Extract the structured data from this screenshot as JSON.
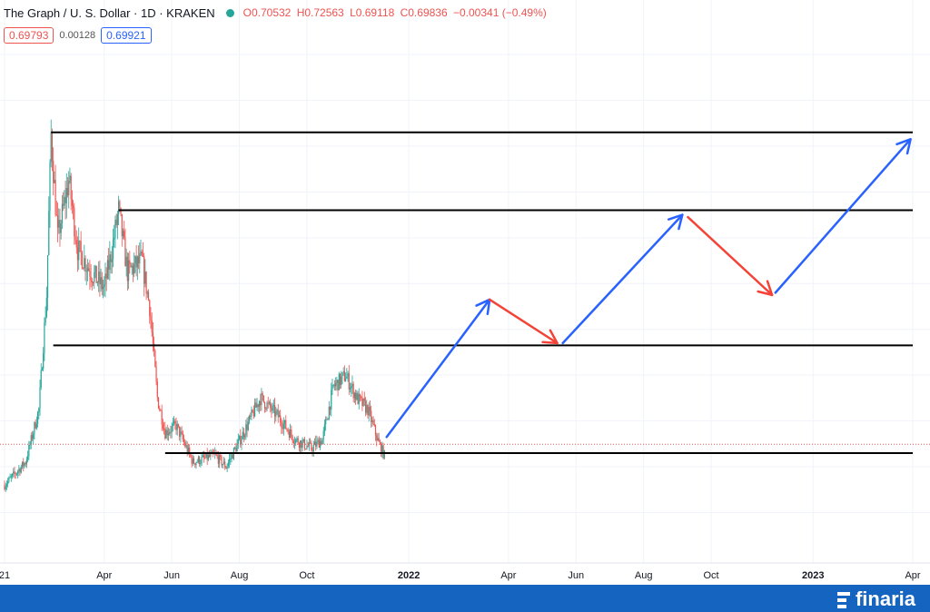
{
  "header": {
    "title": "The Graph / U. S. Dollar · 1D · KRAKEN",
    "open": "O0.70532",
    "high": "H0.72563",
    "low": "L0.69118",
    "close": "C0.69836",
    "change": "−0.00341 (−0.49%)",
    "bid": "0.69793",
    "spread": "0.00128",
    "ask": "0.69921"
  },
  "brand": {
    "name": "finaria"
  },
  "colors": {
    "up": "#26a69a",
    "down": "#ef5350",
    "level": "#000000",
    "arrow_up": "#2962ff",
    "arrow_down": "#f44336",
    "footer": "#1565c0"
  },
  "chart_data": {
    "type": "candlestick",
    "symbol": "The Graph / U. S. Dollar",
    "interval": "1D",
    "exchange": "KRAKEN",
    "x_ticks": [
      {
        "label": "21",
        "date": "2021-01-01"
      },
      {
        "label": "Apr",
        "date": "2021-04-01"
      },
      {
        "label": "Jun",
        "date": "2021-06-01"
      },
      {
        "label": "Aug",
        "date": "2021-08-01"
      },
      {
        "label": "Oct",
        "date": "2021-10-01"
      },
      {
        "label": "2022",
        "date": "2022-01-01"
      },
      {
        "label": "Apr",
        "date": "2022-04-01"
      },
      {
        "label": "Jun",
        "date": "2022-06-01"
      },
      {
        "label": "Aug",
        "date": "2022-08-01"
      },
      {
        "label": "Oct",
        "date": "2022-10-01"
      },
      {
        "label": "2023",
        "date": "2023-01-01"
      },
      {
        "label": "Apr",
        "date": "2023-04-01"
      }
    ],
    "x_bold_labels": [
      "2022",
      "2023"
    ],
    "y_range": [
      0.2,
      2.4
    ],
    "grid": true,
    "current_price": 0.69836,
    "price_path": [
      [
        "2021-01-01",
        0.52
      ],
      [
        "2021-01-20",
        0.62
      ],
      [
        "2021-02-01",
        0.85
      ],
      [
        "2021-02-08",
        1.35
      ],
      [
        "2021-02-12",
        2.05
      ],
      [
        "2021-02-18",
        1.6
      ],
      [
        "2021-02-28",
        1.85
      ],
      [
        "2021-03-08",
        1.55
      ],
      [
        "2021-03-20",
        1.45
      ],
      [
        "2021-04-01",
        1.38
      ],
      [
        "2021-04-08",
        1.55
      ],
      [
        "2021-04-14",
        1.72
      ],
      [
        "2021-04-22",
        1.45
      ],
      [
        "2021-05-05",
        1.5
      ],
      [
        "2021-05-12",
        1.3
      ],
      [
        "2021-05-19",
        0.9
      ],
      [
        "2021-05-26",
        0.75
      ],
      [
        "2021-06-05",
        0.78
      ],
      [
        "2021-06-20",
        0.62
      ],
      [
        "2021-07-10",
        0.65
      ],
      [
        "2021-07-20",
        0.6
      ],
      [
        "2021-08-05",
        0.75
      ],
      [
        "2021-08-20",
        0.9
      ],
      [
        "2021-09-05",
        0.82
      ],
      [
        "2021-09-20",
        0.72
      ],
      [
        "2021-10-05",
        0.68
      ],
      [
        "2021-10-15",
        0.72
      ],
      [
        "2021-10-25",
        0.95
      ],
      [
        "2021-11-05",
        1.0
      ],
      [
        "2021-11-15",
        0.9
      ],
      [
        "2021-11-25",
        0.85
      ],
      [
        "2021-12-05",
        0.7
      ],
      [
        "2021-12-10",
        0.65
      ]
    ],
    "levels": [
      {
        "start": "2021-02-12",
        "end": "2023-04-01",
        "price": 2.06
      },
      {
        "start": "2021-04-14",
        "end": "2023-04-01",
        "price": 1.72
      },
      {
        "start": "2021-02-14",
        "end": "2023-04-01",
        "price": 1.13
      },
      {
        "start": "2021-05-26",
        "end": "2023-04-01",
        "price": 0.66
      }
    ],
    "projection": [
      {
        "from": [
          "2021-12-12",
          0.73
        ],
        "to": [
          "2022-03-15",
          1.33
        ],
        "direction": "up"
      },
      {
        "from": [
          "2022-03-15",
          1.33
        ],
        "to": [
          "2022-05-15",
          1.14
        ],
        "direction": "down"
      },
      {
        "from": [
          "2022-05-20",
          1.14
        ],
        "to": [
          "2022-09-05",
          1.7
        ],
        "direction": "up"
      },
      {
        "from": [
          "2022-09-10",
          1.69
        ],
        "to": [
          "2022-11-25",
          1.35
        ],
        "direction": "down"
      },
      {
        "from": [
          "2022-11-28",
          1.36
        ],
        "to": [
          "2023-03-30",
          2.03
        ],
        "direction": "up"
      }
    ]
  }
}
